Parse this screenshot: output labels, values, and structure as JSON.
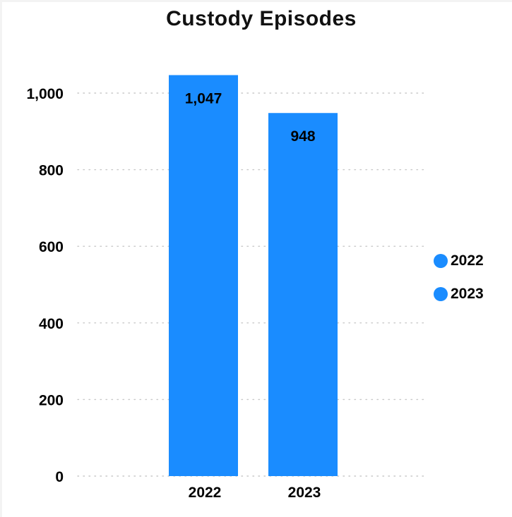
{
  "chart_data": {
    "type": "bar",
    "title": "Custody Episodes",
    "categories": [
      "2022",
      "2023"
    ],
    "values": [
      1047,
      948
    ],
    "value_labels": [
      "1,047",
      "948"
    ],
    "ylim": [
      0,
      1000
    ],
    "yticks": [
      0,
      200,
      400,
      600,
      800,
      1000
    ],
    "ytick_labels": [
      "0",
      "200",
      "400",
      "600",
      "800",
      "1,000"
    ],
    "xlabel": "",
    "ylabel": "",
    "grid": true,
    "legend_position": "right",
    "legend": [
      {
        "label": "2022",
        "color": "#1a8cff"
      },
      {
        "label": "2023",
        "color": "#1a8cff"
      }
    ],
    "bar_color": "#1a8cff"
  }
}
